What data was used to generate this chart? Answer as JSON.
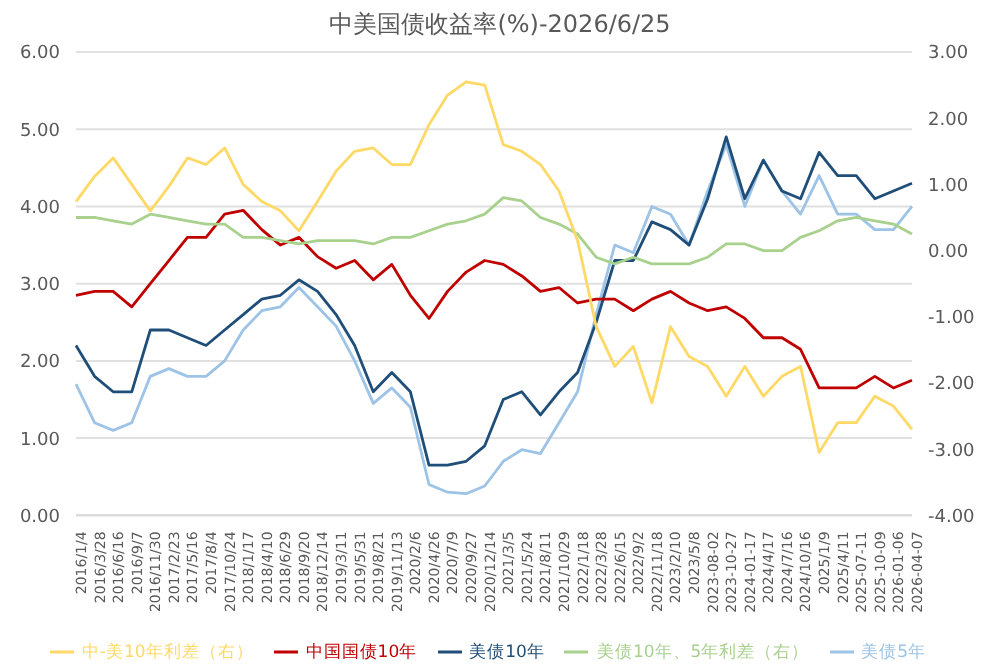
{
  "chart_data": {
    "type": "line",
    "title": "中美国债收益率(%)-2026/6/25",
    "categories": [
      "2016/1/4",
      "2016/3/28",
      "2016/6/16",
      "2016/9/7",
      "2016/11/30",
      "2017/2/23",
      "2017/5/16",
      "2017/8/4",
      "2017/10/24",
      "2018/1/17",
      "2018/4/10",
      "2018/6/29",
      "2018/9/20",
      "2018/12/14",
      "2019/3/11",
      "2019/5/31",
      "2019/8/21",
      "2019/11/13",
      "2020/2/6",
      "2020/4/26",
      "2020/7/9",
      "2020/9/27",
      "2020/12/14",
      "2021/3/5",
      "2021/5/24",
      "2021/8/11",
      "2021/10/29",
      "2022/1/18",
      "2022/3/28",
      "2022/6/15",
      "2022/9/2",
      "2022/11/18",
      "2023/2/10",
      "2023/5/8",
      "2023-08-02",
      "2023-10-27",
      "2024-01-17",
      "2024/4/17",
      "2024/7/16",
      "2024/10/16",
      "2025/1/9",
      "2025/4/11",
      "2025-07-11",
      "2025-10-09",
      "2026-01-06",
      "2026-04-07"
    ],
    "series": [
      {
        "name": "美债5年",
        "color": "#9dc3e6",
        "values": [
          1.7,
          1.2,
          1.1,
          1.2,
          1.8,
          1.9,
          1.8,
          1.8,
          2.0,
          2.4,
          2.65,
          2.7,
          2.95,
          2.7,
          2.45,
          2.0,
          1.45,
          1.65,
          1.4,
          0.4,
          0.3,
          0.28,
          0.38,
          0.7,
          0.85,
          0.8,
          1.2,
          1.6,
          2.6,
          3.5,
          3.4,
          4.0,
          3.9,
          3.5,
          4.2,
          4.8,
          4.0,
          4.6,
          4.2,
          3.9,
          4.4,
          3.9,
          3.9,
          3.7,
          3.7,
          4.0
        ]
      },
      {
        "name": "美债10年",
        "color": "#1f4e79",
        "values": [
          2.2,
          1.8,
          1.6,
          1.6,
          2.4,
          2.4,
          2.3,
          2.2,
          2.4,
          2.6,
          2.8,
          2.85,
          3.05,
          2.9,
          2.6,
          2.2,
          1.6,
          1.85,
          1.6,
          0.65,
          0.65,
          0.7,
          0.9,
          1.5,
          1.6,
          1.3,
          1.6,
          1.85,
          2.5,
          3.3,
          3.3,
          3.8,
          3.7,
          3.5,
          4.1,
          4.9,
          4.1,
          4.6,
          4.2,
          4.1,
          4.7,
          4.4,
          4.4,
          4.1,
          4.2,
          4.3
        ]
      },
      {
        "name": "中国国债10年",
        "color": "#c00000",
        "values": [
          2.85,
          2.9,
          2.9,
          2.7,
          3.0,
          3.3,
          3.6,
          3.6,
          3.9,
          3.95,
          3.7,
          3.5,
          3.6,
          3.35,
          3.2,
          3.3,
          3.05,
          3.25,
          2.85,
          2.55,
          2.9,
          3.15,
          3.3,
          3.25,
          3.1,
          2.9,
          2.95,
          2.75,
          2.8,
          2.8,
          2.65,
          2.8,
          2.9,
          2.75,
          2.65,
          2.7,
          2.55,
          2.3,
          2.3,
          2.15,
          1.65,
          1.65,
          1.65,
          1.8,
          1.65,
          1.75
        ]
      },
      {
        "name": "美债10年、5年利差（右）",
        "color": "#a9d18e",
        "axis": "y2",
        "values": [
          0.5,
          0.5,
          0.45,
          0.4,
          0.55,
          0.5,
          0.45,
          0.4,
          0.4,
          0.2,
          0.2,
          0.15,
          0.1,
          0.15,
          0.15,
          0.15,
          0.1,
          0.2,
          0.2,
          0.3,
          0.4,
          0.45,
          0.55,
          0.8,
          0.75,
          0.5,
          0.4,
          0.25,
          -0.1,
          -0.2,
          -0.1,
          -0.2,
          -0.2,
          -0.2,
          -0.1,
          0.1,
          0.1,
          0.0,
          0.0,
          0.2,
          0.3,
          0.45,
          0.5,
          0.45,
          0.4,
          0.25
        ]
      },
      {
        "name": "中-美10年利差（右）",
        "color": "#ffd966",
        "axis": "y2",
        "values": [
          0.74,
          1.12,
          1.4,
          1.0,
          0.6,
          0.97,
          1.4,
          1.3,
          1.55,
          1.0,
          0.74,
          0.6,
          0.3,
          0.74,
          1.2,
          1.5,
          1.55,
          1.3,
          1.3,
          1.9,
          2.35,
          2.55,
          2.5,
          1.6,
          1.5,
          1.3,
          0.9,
          0.15,
          -1.15,
          -1.75,
          -1.45,
          -2.3,
          -1.15,
          -1.6,
          -1.75,
          -2.2,
          -1.75,
          -2.2,
          -1.9,
          -1.75,
          -3.05,
          -2.6,
          -2.6,
          -2.2,
          -2.35,
          -2.7
        ]
      }
    ],
    "ylim": [
      0,
      6
    ],
    "yticks": [
      {
        "value": 0,
        "label": "0.00"
      },
      {
        "value": 1,
        "label": "1.00"
      },
      {
        "value": 2,
        "label": "2.00"
      },
      {
        "value": 3,
        "label": "3.00"
      },
      {
        "value": 4,
        "label": "4.00"
      },
      {
        "value": 5,
        "label": "5.00"
      },
      {
        "value": 6,
        "label": "6.00"
      }
    ],
    "y2lim": [
      -4,
      3
    ],
    "y2ticks": [
      {
        "value": -4,
        "label": "-4.00"
      },
      {
        "value": -3,
        "label": "-3.00"
      },
      {
        "value": -2,
        "label": "-2.00"
      },
      {
        "value": -1,
        "label": "-1.00"
      },
      {
        "value": 0,
        "label": "0.00"
      },
      {
        "value": 1,
        "label": "1.00"
      },
      {
        "value": 2,
        "label": "2.00"
      },
      {
        "value": 3,
        "label": "3.00"
      }
    ],
    "grid": "y",
    "legend": "bottom",
    "marker": "none",
    "line_style": "solid"
  }
}
